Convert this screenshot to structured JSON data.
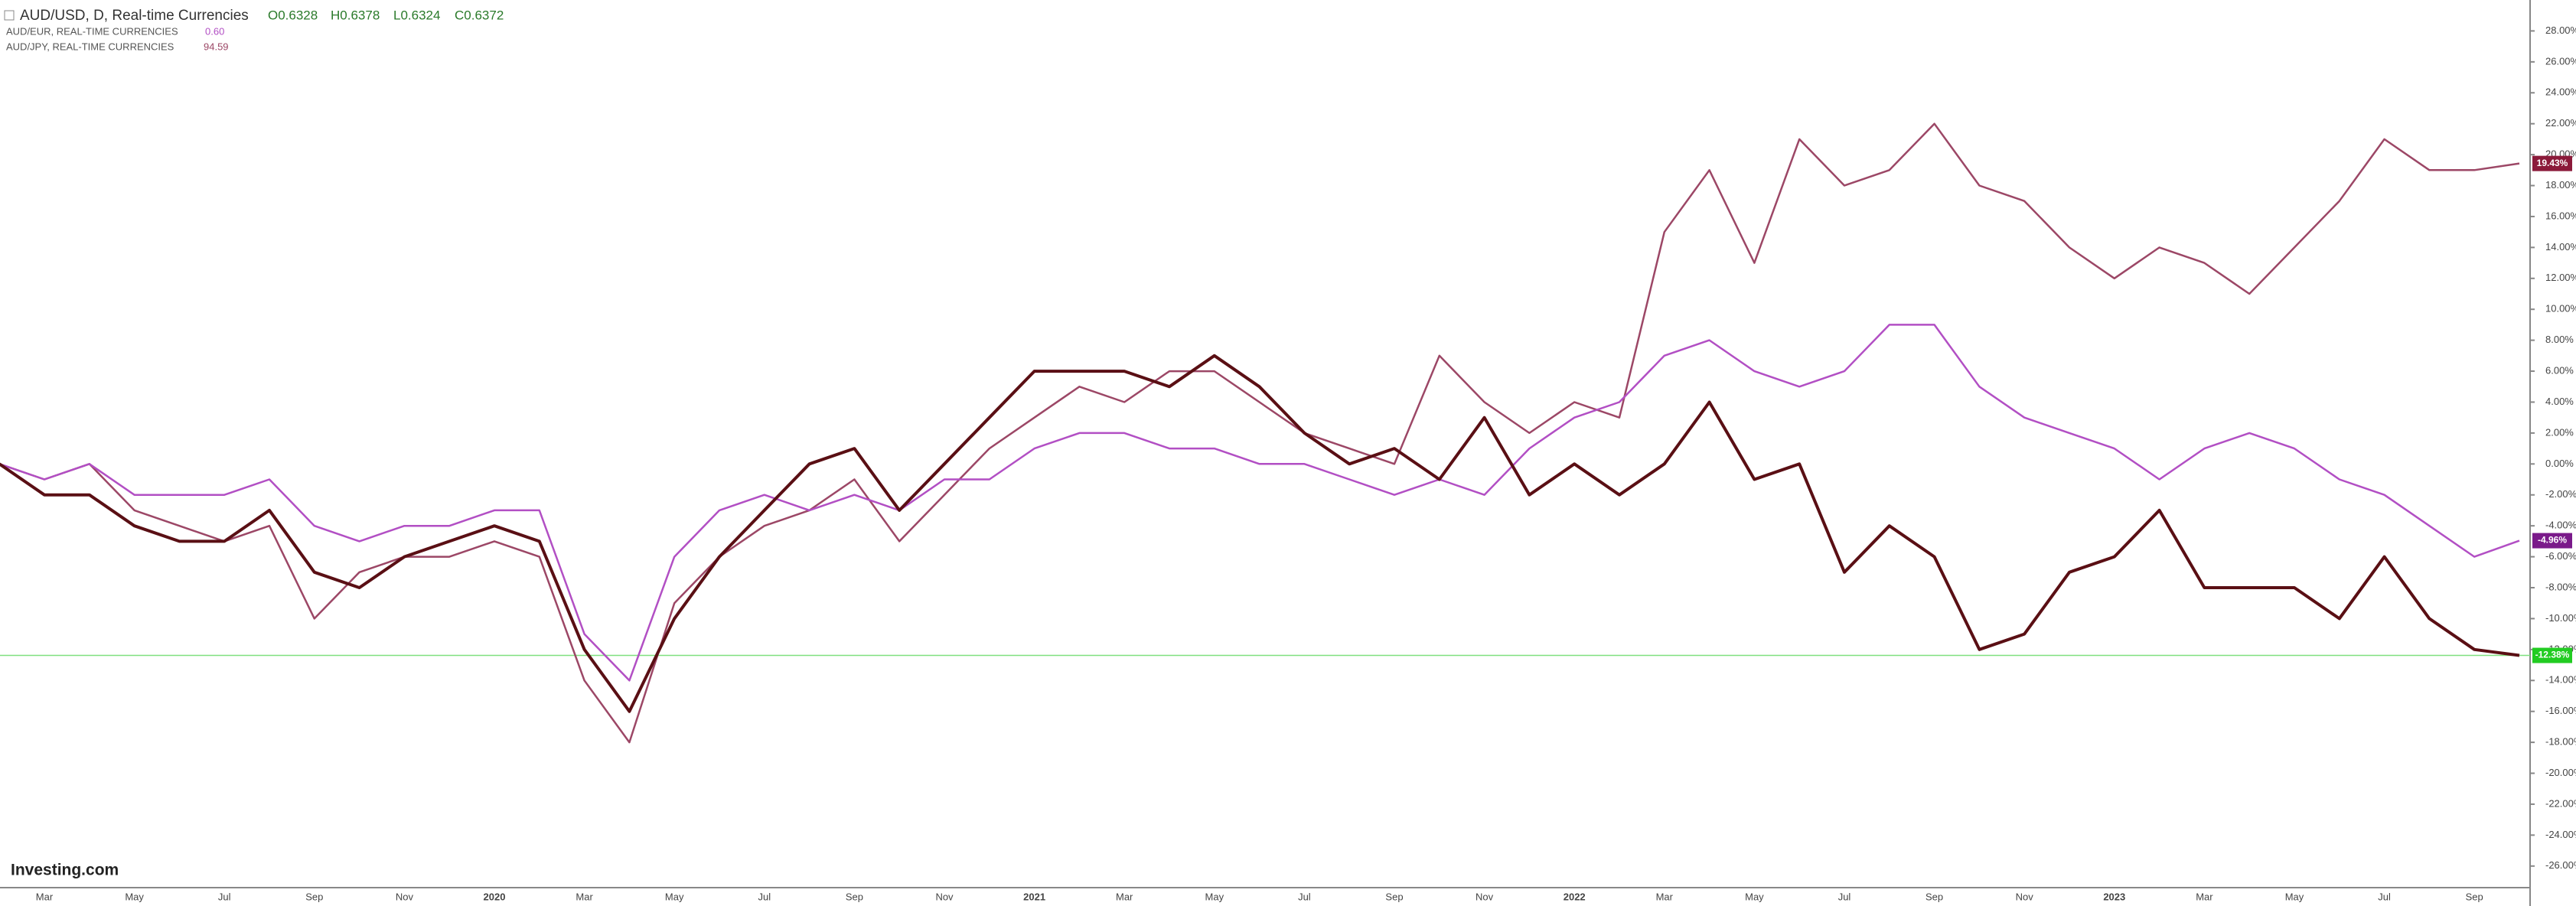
{
  "chart_data": {
    "type": "line",
    "header": {
      "symbol": "AUD/USD, D, Real-time Currencies",
      "open": "O0.6328",
      "high": "H0.6378",
      "low": "L0.6324",
      "close": "C0.6372"
    },
    "logo": "Investing.com",
    "categories": [
      null,
      "Mar",
      null,
      "May",
      null,
      "Jul",
      null,
      "Sep",
      null,
      "Nov",
      null,
      "2020",
      null,
      "Mar",
      null,
      "May",
      null,
      "Jul",
      null,
      "Sep",
      null,
      "Nov",
      null,
      "2021",
      null,
      "Mar",
      null,
      "May",
      null,
      "Jul",
      null,
      "Sep",
      null,
      "Nov",
      null,
      "2022",
      null,
      "Mar",
      null,
      "May",
      null,
      "Jul",
      null,
      "Sep",
      null,
      "Nov",
      null,
      "2023",
      null,
      "Mar",
      null,
      "May",
      null,
      "Jul",
      null,
      "Sep",
      null
    ],
    "series": [
      {
        "name": "AUD/USD",
        "color": "#5a0f14",
        "last_value_label": "-12.38%",
        "label_color": "#22cc22",
        "values": [
          0,
          -2,
          -2,
          -4,
          -5,
          -5,
          -3,
          -7,
          -8,
          -6,
          -5,
          -4,
          -5,
          -12,
          -16,
          -10,
          -6,
          -3,
          0,
          1,
          -3,
          0,
          3,
          6,
          6,
          6,
          5,
          7,
          5,
          2,
          0,
          1,
          -1,
          3,
          -2,
          0,
          -2,
          0,
          4,
          -1,
          0,
          -7,
          -4,
          -6,
          -12,
          -11,
          -7,
          -6,
          -3,
          -8,
          -8,
          -8,
          -10,
          -6,
          -10,
          -12,
          -12.38
        ]
      },
      {
        "name": "AUD/EUR, REAL-TIME CURRENCIES",
        "last": "0.60",
        "color": "#b24fc4",
        "last_value_label": "-4.96%",
        "label_color": "#7a1a8a",
        "values": [
          0,
          -1,
          0,
          -2,
          -2,
          -2,
          -1,
          -4,
          -5,
          -4,
          -4,
          -3,
          -3,
          -11,
          -14,
          -6,
          -3,
          -2,
          -3,
          -2,
          -3,
          -1,
          -1,
          1,
          2,
          2,
          1,
          1,
          0,
          0,
          -1,
          -2,
          -1,
          -2,
          1,
          3,
          4,
          7,
          8,
          6,
          5,
          6,
          9,
          9,
          5,
          3,
          2,
          1,
          -1,
          1,
          2,
          1,
          -1,
          -2,
          -4,
          -6,
          -4.96
        ]
      },
      {
        "name": "AUD/JPY, REAL-TIME CURRENCIES",
        "last": "94.59",
        "color": "#9c4766",
        "last_value_label": "19.43%",
        "label_color": "#8b1a3a",
        "values": [
          0,
          -1,
          0,
          -3,
          -4,
          -5,
          -4,
          -10,
          -7,
          -6,
          -6,
          -5,
          -6,
          -14,
          -18,
          -9,
          -6,
          -4,
          -3,
          -1,
          -5,
          -2,
          1,
          3,
          5,
          4,
          6,
          6,
          4,
          2,
          1,
          0,
          7,
          4,
          2,
          4,
          3,
          15,
          19,
          13,
          21,
          18,
          19,
          22,
          18,
          17,
          14,
          12,
          14,
          13,
          11,
          14,
          17,
          21,
          19,
          19,
          19.43
        ]
      }
    ],
    "ylim": [
      -27,
      30
    ],
    "yticks": [
      {
        "value": 28,
        "label": "28.00%"
      },
      {
        "value": 26,
        "label": "26.00%"
      },
      {
        "value": 24,
        "label": "24.00%"
      },
      {
        "value": 22,
        "label": "22.00%"
      },
      {
        "value": 20,
        "label": "20.00%"
      },
      {
        "value": 18,
        "label": "18.00%"
      },
      {
        "value": 16,
        "label": "16.00%"
      },
      {
        "value": 14,
        "label": "14.00%"
      },
      {
        "value": 12,
        "label": "12.00%"
      },
      {
        "value": 10,
        "label": "10.00%"
      },
      {
        "value": 8,
        "label": "8.00%"
      },
      {
        "value": 6,
        "label": "6.00%"
      },
      {
        "value": 4,
        "label": "4.00%"
      },
      {
        "value": 2,
        "label": "2.00%"
      },
      {
        "value": 0,
        "label": "0.00%"
      },
      {
        "value": -2,
        "label": "-2.00%"
      },
      {
        "value": -4,
        "label": "-4.00%"
      },
      {
        "value": -6,
        "label": "-6.00%"
      },
      {
        "value": -8,
        "label": "-8.00%"
      },
      {
        "value": -10,
        "label": "-10.00%"
      },
      {
        "value": -12,
        "label": "-12.00%"
      },
      {
        "value": -14,
        "label": "-14.00%"
      },
      {
        "value": -16,
        "label": "-16.00%"
      },
      {
        "value": -18,
        "label": "-18.00%"
      },
      {
        "value": -20,
        "label": "-20.00%"
      },
      {
        "value": -22,
        "label": "-22.00%"
      },
      {
        "value": -24,
        "label": "-24.00%"
      },
      {
        "value": -26,
        "label": "-26.00%"
      }
    ],
    "grid": false
  }
}
